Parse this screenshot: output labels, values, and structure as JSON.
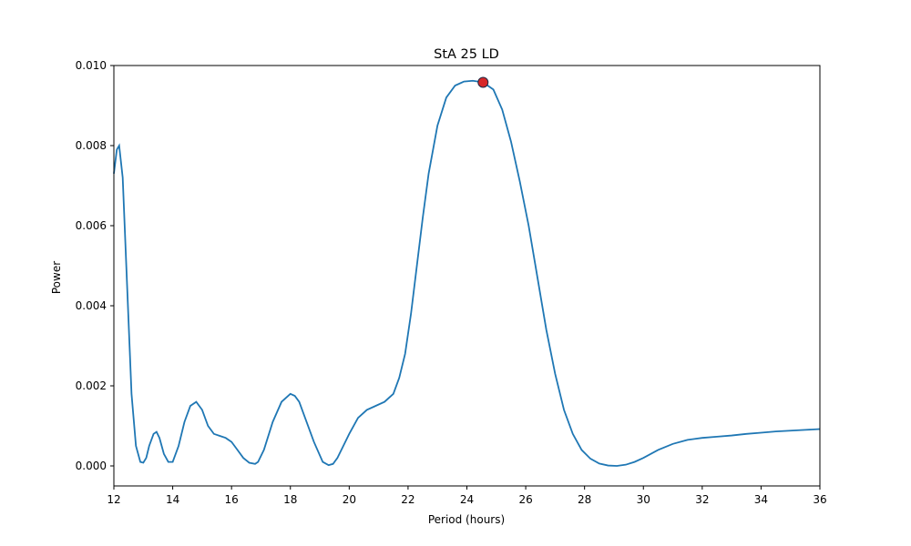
{
  "chart_data": {
    "type": "line",
    "title": "StA 25 LD",
    "xlabel": "Period (hours)",
    "ylabel": "Power",
    "xlim": [
      12,
      36
    ],
    "ylim": [
      -0.0005,
      0.01
    ],
    "xticks": [
      12,
      14,
      16,
      18,
      20,
      22,
      24,
      26,
      28,
      30,
      32,
      34,
      36
    ],
    "xtick_labels": [
      "12",
      "14",
      "16",
      "18",
      "20",
      "22",
      "24",
      "26",
      "28",
      "30",
      "32",
      "34",
      "36"
    ],
    "yticks": [
      0.0,
      0.002,
      0.004,
      0.006,
      0.008,
      0.01
    ],
    "ytick_labels": [
      "0.000",
      "0.002",
      "0.004",
      "0.006",
      "0.008",
      "0.010"
    ],
    "grid": false,
    "series": [
      {
        "color": "#1f77b4",
        "x": [
          12.0,
          12.1,
          12.18,
          12.3,
          12.45,
          12.6,
          12.75,
          12.9,
          13.0,
          13.1,
          13.2,
          13.35,
          13.45,
          13.55,
          13.7,
          13.85,
          14.0,
          14.2,
          14.4,
          14.6,
          14.8,
          15.0,
          15.2,
          15.4,
          15.6,
          15.8,
          16.0,
          16.2,
          16.4,
          16.6,
          16.8,
          16.9,
          17.1,
          17.4,
          17.7,
          18.0,
          18.15,
          18.3,
          18.5,
          18.8,
          19.1,
          19.3,
          19.45,
          19.6,
          19.8,
          20.0,
          20.3,
          20.6,
          20.9,
          21.2,
          21.5,
          21.7,
          21.9,
          22.1,
          22.3,
          22.5,
          22.7,
          23.0,
          23.3,
          23.6,
          23.9,
          24.2,
          24.55,
          24.9,
          25.2,
          25.5,
          25.8,
          26.1,
          26.4,
          26.7,
          27.0,
          27.3,
          27.6,
          27.9,
          28.2,
          28.5,
          28.8,
          29.1,
          29.4,
          29.7,
          30.0,
          30.5,
          31.0,
          31.5,
          32.0,
          32.5,
          33.0,
          33.5,
          34.0,
          34.5,
          35.0,
          35.5,
          36.0
        ],
        "y": [
          0.0073,
          0.0079,
          0.008,
          0.0072,
          0.0045,
          0.0018,
          0.0005,
          0.0001,
          8e-05,
          0.0002,
          0.0005,
          0.0008,
          0.00085,
          0.0007,
          0.0003,
          0.0001,
          0.0001,
          0.0005,
          0.0011,
          0.0015,
          0.0016,
          0.0014,
          0.001,
          0.0008,
          0.00075,
          0.0007,
          0.0006,
          0.0004,
          0.0002,
          8e-05,
          5e-05,
          0.0001,
          0.0004,
          0.0011,
          0.0016,
          0.0018,
          0.00175,
          0.0016,
          0.0012,
          0.0006,
          0.0001,
          2e-05,
          5e-05,
          0.0002,
          0.0005,
          0.0008,
          0.0012,
          0.0014,
          0.0015,
          0.0016,
          0.0018,
          0.0022,
          0.0028,
          0.0038,
          0.005,
          0.0062,
          0.0073,
          0.0085,
          0.0092,
          0.0095,
          0.0096,
          0.00962,
          0.00958,
          0.0094,
          0.0089,
          0.0081,
          0.0071,
          0.006,
          0.0047,
          0.0034,
          0.0023,
          0.0014,
          0.0008,
          0.0004,
          0.00018,
          6e-05,
          1e-05,
          0.0,
          3e-05,
          0.0001,
          0.0002,
          0.0004,
          0.00055,
          0.00065,
          0.0007,
          0.00073,
          0.00076,
          0.0008,
          0.00083,
          0.00086,
          0.00088,
          0.0009,
          0.00092
        ]
      }
    ],
    "annotations": [
      {
        "type": "point",
        "x": 24.55,
        "y": 0.00958,
        "color": "#d62728"
      }
    ]
  }
}
